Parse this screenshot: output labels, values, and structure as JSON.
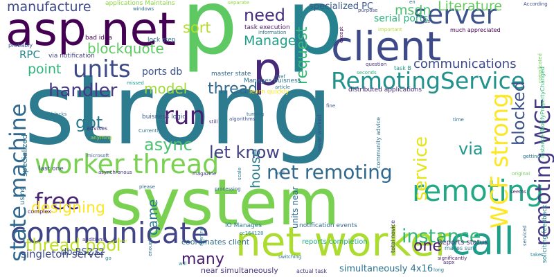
{
  "palette": {
    "dark_purple": "#440154",
    "indigo": "#3b528b",
    "navy": "#31688e",
    "teal": "#21918c",
    "sea_green": "#28ae80",
    "green": "#5ec962",
    "lime": "#addc30",
    "yellow": "#fde725"
  },
  "words": [
    {
      "text": "strong",
      "color": "#2c7b8e"
    },
    {
      "text": "system",
      "color": "#7ad151"
    },
    {
      "text": "p",
      "color": "#5ec962"
    },
    {
      "text": "p",
      "color": "#26828e"
    },
    {
      "text": "asp net",
      "color": "#440154"
    },
    {
      "text": "client",
      "color": "#3e4989"
    },
    {
      "text": "p",
      "color": "#482878"
    },
    {
      "text": "net worker",
      "color": "#addc30"
    },
    {
      "text": "worker thread",
      "color": "#7ad151"
    },
    {
      "text": "call",
      "color": "#1f9e89"
    },
    {
      "text": "communicate",
      "color": "#414487"
    },
    {
      "text": "RemotingService",
      "color": "#21918c"
    },
    {
      "text": "server",
      "color": "#3b528b"
    },
    {
      "text": "net remoting",
      "color": "#31688e"
    },
    {
      "text": "remoting",
      "color": "#22a884"
    },
    {
      "text": "units",
      "color": "#3e4989"
    },
    {
      "text": "state machine",
      "color": "#31688e"
    },
    {
      "text": "run",
      "color": "#481f70"
    },
    {
      "text": "handler",
      "color": "#443983"
    },
    {
      "text": "instance",
      "color": "#35b779"
    },
    {
      "text": "free",
      "color": "#482475"
    },
    {
      "text": "thread pool",
      "color": "#bddf26"
    },
    {
      "text": "designing",
      "color": "#fde725"
    },
    {
      "text": "WCF strong",
      "color": "#fde725"
    },
    {
      "text": "remoting WCF",
      "color": "#443a83"
    },
    {
      "text": "service",
      "color": "#e5e419"
    },
    {
      "text": "blocked",
      "color": "#3b528b"
    },
    {
      "text": "let know",
      "color": "#424086"
    },
    {
      "text": "via",
      "color": "#1f988b"
    },
    {
      "text": "async",
      "color": "#4ac16d"
    },
    {
      "text": "got",
      "color": "#2a788e"
    },
    {
      "text": "thread",
      "color": "#31688e"
    },
    {
      "text": "model",
      "color": "#a0da39"
    },
    {
      "text": "need",
      "color": "#472d7b"
    },
    {
      "text": "request",
      "color": "#35b779"
    },
    {
      "text": "Manage",
      "color": "#1f9e89"
    },
    {
      "text": "blockquote",
      "color": "#5ec962"
    },
    {
      "text": "communications",
      "color": "#3e4989"
    },
    {
      "text": "sort",
      "color": "#b5de2b"
    },
    {
      "text": "msdn",
      "color": "#4ac16d"
    },
    {
      "text": "Literature",
      "color": "#65cb5e"
    },
    {
      "text": "manufacture",
      "color": "#3e4989"
    },
    {
      "text": "house",
      "color": "#287d8e"
    },
    {
      "text": "one",
      "color": "#481c6e"
    },
    {
      "text": "came",
      "color": "#2a788e"
    },
    {
      "text": "many",
      "color": "#481f70"
    },
    {
      "text": "point",
      "color": "#2fb47c"
    },
    {
      "text": "RPC",
      "color": "#25848e"
    },
    {
      "text": "specialized PC",
      "color": "#38598c"
    },
    {
      "text": "serial ports",
      "color": "#2fb47c"
    },
    {
      "text": "ports db",
      "color": "#3b528b"
    },
    {
      "text": "db RS232",
      "color": "#3b528b"
    },
    {
      "text": "singleton server",
      "color": "#3e4989"
    },
    {
      "text": "coordinates client",
      "color": "#2e6e8e"
    },
    {
      "text": "units near",
      "color": "#2e6e8e"
    },
    {
      "text": "Reports status",
      "color": "#46307e"
    },
    {
      "text": "simultaneously 4x16",
      "color": "#2c728e"
    },
    {
      "text": "near simultaneously",
      "color": "#46337f"
    },
    {
      "text": "reports completion",
      "color": "#27ad81"
    },
    {
      "text": "notification events",
      "color": "#31688e"
    },
    {
      "text": "IO Manages",
      "color": "#2a788e"
    },
    {
      "text": "distributed applications",
      "color": "#482576"
    },
    {
      "text": "task execution",
      "color": "#481a6c"
    },
    {
      "text": "lock step",
      "color": "#2c728e"
    },
    {
      "text": "via notification",
      "color": "#433e85"
    },
    {
      "text": "Manages buisness",
      "color": "#2c728e"
    },
    {
      "text": "master state",
      "color": "#31688e"
    },
    {
      "text": "applications Maintains",
      "color": "#8fd744"
    },
    {
      "text": "windows",
      "color": "#2e6e8e"
    },
    {
      "text": "bad idea",
      "color": "#440154"
    },
    {
      "text": "probably",
      "color": "#3b528b"
    },
    {
      "text": "task B",
      "color": "#1f988b"
    },
    {
      "text": "much appreciated",
      "color": "#440154"
    },
    {
      "text": "instance INotifyPropertyChanged",
      "color": "#35b779"
    },
    {
      "text": "soliciting feedback",
      "color": "#26828e"
    },
    {
      "text": "buisness logic",
      "color": "#39568c"
    },
    {
      "text": "learn quickly",
      "color": "#fde725"
    },
    {
      "text": "article",
      "color": "#2a788e"
    },
    {
      "text": "total novice",
      "color": "#46337f"
    },
    {
      "text": "community advice",
      "color": "#2c728e"
    },
    {
      "text": "never worked",
      "color": "#3b528b"
    },
    {
      "text": "makes sure",
      "color": "#2a788e"
    },
    {
      "text": "actual task",
      "color": "#46327e"
    },
    {
      "text": "specialized",
      "color": "#2a788e"
    },
    {
      "text": "using",
      "color": "#2e6e8e"
    },
    {
      "text": "last one",
      "color": "#414487"
    },
    {
      "text": "advises",
      "color": "#472f7d"
    },
    {
      "text": "Currently",
      "color": "#2c728e"
    },
    {
      "text": "microsoft",
      "color": "#38598c"
    },
    {
      "text": "complex",
      "color": "#481769"
    },
    {
      "text": "additional",
      "color": "#46337f"
    },
    {
      "text": "answer",
      "color": "#bddf26"
    },
    {
      "text": "please",
      "color": "#31688e"
    },
    {
      "text": "magazine",
      "color": "#46307e"
    },
    {
      "text": "processing",
      "color": "#34608d"
    },
    {
      "text": "asynchronous",
      "color": "#46337f"
    },
    {
      "text": "still",
      "color": "#472f7d"
    },
    {
      "text": "turning",
      "color": "#2e6e8e"
    },
    {
      "text": "blocks",
      "color": "#2c728e"
    },
    {
      "text": "anything",
      "color": "#b5de2b"
    },
    {
      "text": "missed",
      "color": "#1f988b"
    },
    {
      "text": "well",
      "color": "#31688e"
    },
    {
      "text": "fine",
      "color": "#3b528b"
    },
    {
      "text": "question",
      "color": "#46307e"
    },
    {
      "text": "seconds",
      "color": "#2fb47c"
    },
    {
      "text": "href",
      "color": "#2a788e"
    },
    {
      "text": "information",
      "color": "#2c728e"
    },
    {
      "text": "purpose",
      "color": "#3e4989"
    },
    {
      "text": "except",
      "color": "#440154"
    },
    {
      "text": "important",
      "color": "#addc30"
    },
    {
      "text": "separate",
      "color": "#8fd744"
    },
    {
      "text": "According",
      "color": "#3e4989"
    },
    {
      "text": "complicated",
      "color": "#6ece58"
    },
    {
      "text": "getting",
      "color": "#2a788e"
    },
    {
      "text": "time",
      "color": "#2e6e8e"
    },
    {
      "text": "seems",
      "color": "#482475"
    },
    {
      "text": "serviced",
      "color": "#34608d"
    },
    {
      "text": "original",
      "color": "#6ece58"
    },
    {
      "text": "significantly",
      "color": "#48186a"
    },
    {
      "text": "aspx",
      "color": "#472d7b"
    },
    {
      "text": "takes",
      "color": "#26828e"
    },
    {
      "text": "long",
      "color": "#2a788e"
    },
    {
      "text": "switching",
      "color": "#2c728e"
    },
    {
      "text": "cc164128",
      "color": "#26828e"
    },
    {
      "text": "enough",
      "color": "#31688e"
    },
    {
      "text": "running",
      "color": "#287d8e"
    },
    {
      "text": "will",
      "color": "#25848e"
    },
    {
      "text": "go",
      "color": "#25848e"
    },
    {
      "text": "en",
      "color": "#31688e"
    },
    {
      "text": "us",
      "color": "#3b528b"
    },
    {
      "text": "scale",
      "color": "#2a788e"
    },
    {
      "text": "algorithms",
      "color": "#3b528b"
    }
  ]
}
